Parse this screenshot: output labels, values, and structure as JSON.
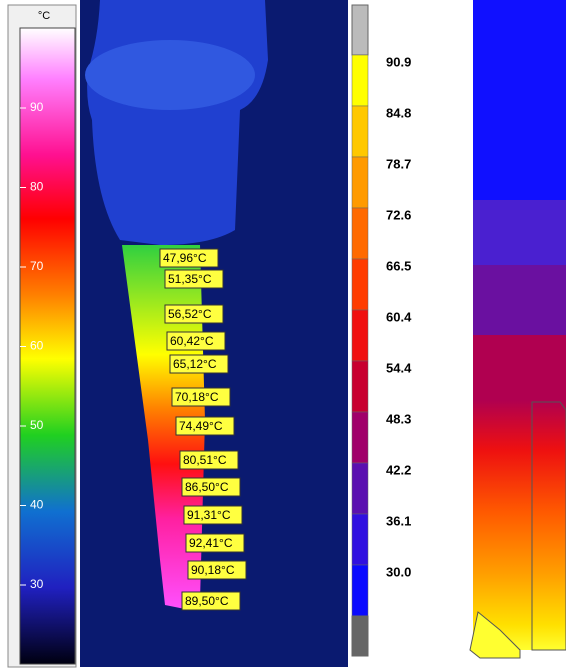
{
  "left_scale": {
    "unit": "°C",
    "ticks": [
      "90",
      "80",
      "70",
      "60",
      "50",
      "40",
      "30"
    ]
  },
  "thermal_labels": [
    "47,96°C",
    "51,35°C",
    "56,52°C",
    "60,42°C",
    "65,12°C",
    "70,18°C",
    "74,49°C",
    "80,51°C",
    "86,50°C",
    "91,31°C",
    "92,41°C",
    "90,18°C",
    "89,50°C"
  ],
  "sim_scale": {
    "labels": [
      "90.9",
      "84.8",
      "78.7",
      "72.6",
      "66.5",
      "60.4",
      "54.4",
      "48.3",
      "42.2",
      "36.1",
      "30.0"
    ]
  }
}
